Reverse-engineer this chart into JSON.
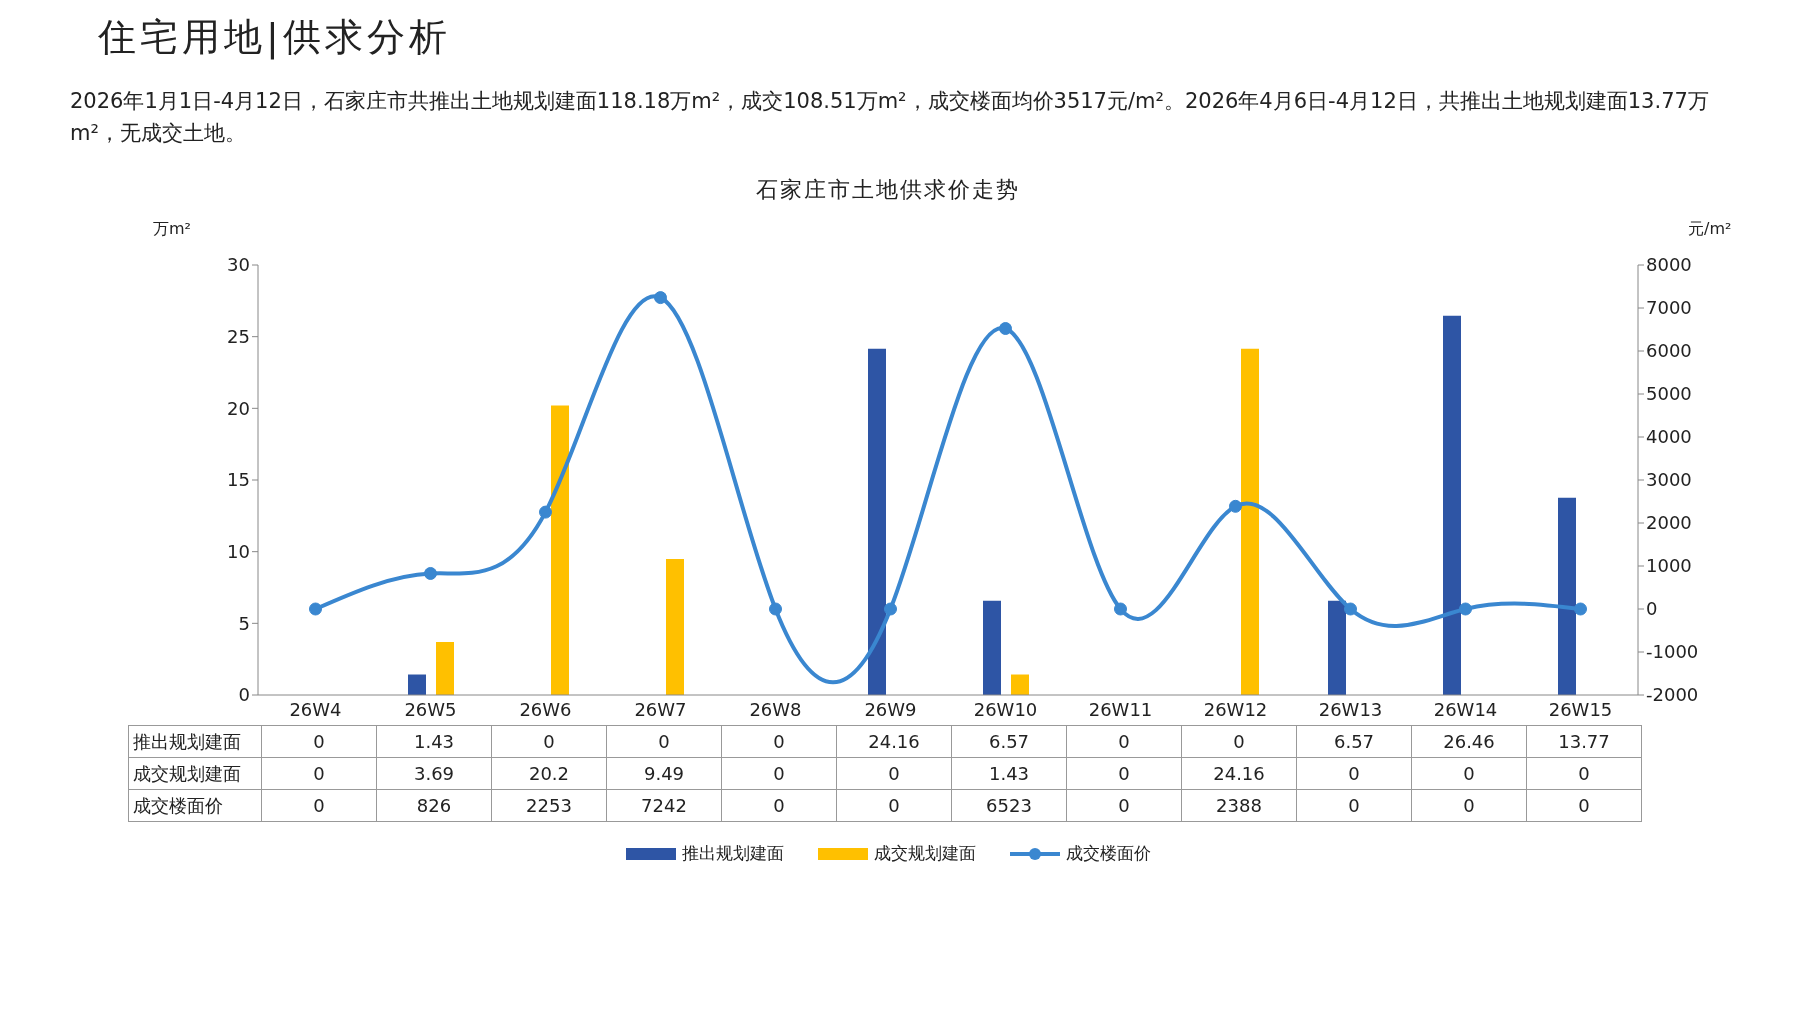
{
  "chart_data": {
    "type": "bar",
    "title": "住宅用地|供求分析",
    "subtitle": "2026年1月1日-4月12日，石家庄市共推出土地规划建面118.18万m²，成交108.51万m²，成交楼面均价3517元/m²。2026年4月6日-4月12日，共推出土地规划建面13.77万m²，无成交土地。",
    "annotations": [
      "石家庄市土地供求价走势"
    ],
    "ylabel": "万m²",
    "y2label": "元/m²",
    "categories": [
      "26W4",
      "26W5",
      "26W6",
      "26W7",
      "26W8",
      "26W9",
      "26W10",
      "26W11",
      "26W12",
      "26W13",
      "26W14",
      "26W15"
    ],
    "series": [
      {
        "name": "推出规划建面",
        "color": "#2e55a5",
        "values": [
          0,
          1.43,
          0,
          0,
          0,
          24.16,
          6.57,
          0,
          0,
          6.57,
          26.46,
          13.77
        ]
      },
      {
        "name": "成交规划建面",
        "color": "#ffc000",
        "values": [
          0,
          3.69,
          20.2,
          9.49,
          0,
          0,
          1.43,
          0,
          24.16,
          0,
          0,
          0
        ]
      },
      {
        "name": "成交楼面价",
        "type": "line",
        "axis": "y2",
        "color": "#3a87d0",
        "values": [
          0,
          826,
          2253,
          7242,
          0,
          0,
          6523,
          0,
          2388,
          0,
          0,
          0
        ]
      }
    ],
    "ylim": [
      0,
      30
    ],
    "yticks": [
      0,
      5,
      10,
      15,
      20,
      25,
      30
    ],
    "y2lim": [
      -2000,
      8000
    ],
    "y2ticks": [
      -2000,
      -1000,
      0,
      1000,
      2000,
      3000,
      4000,
      5000,
      6000,
      7000,
      8000
    ],
    "marker": "circle",
    "legend": "bottom",
    "data_labels": true
  }
}
